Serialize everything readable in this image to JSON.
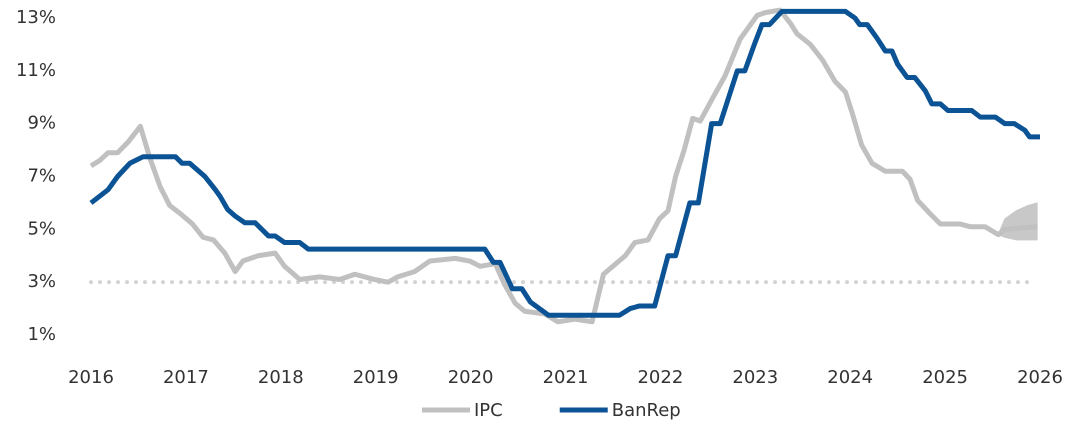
{
  "chart_data": {
    "type": "line",
    "xlim": [
      2016,
      2026
    ],
    "xticks": [
      2016,
      2017,
      2018,
      2019,
      2020,
      2021,
      2022,
      2023,
      2024,
      2025,
      2026
    ],
    "ylim": [
      1,
      13
    ],
    "yticks": [
      {
        "value": 1,
        "label": "1%"
      },
      {
        "value": 3,
        "label": "3%"
      },
      {
        "value": 5,
        "label": "5%"
      },
      {
        "value": 7,
        "label": "7%"
      },
      {
        "value": 9,
        "label": "9%"
      },
      {
        "value": 11,
        "label": "11%"
      },
      {
        "value": 13,
        "label": "13%"
      }
    ],
    "grid": false,
    "legend": "bottom",
    "reference_line": {
      "value": 3,
      "color": "#d3d3d3",
      "style": "dotted"
    },
    "series": [
      {
        "name": "IPC",
        "color": "#c0c0c0",
        "x": [
          2016.0,
          2016.09,
          2016.18,
          2016.28,
          2016.39,
          2016.52,
          2016.62,
          2016.73,
          2016.83,
          2016.94,
          2017.07,
          2017.18,
          2017.29,
          2017.41,
          2017.52,
          2017.6,
          2017.76,
          2017.94,
          2018.04,
          2018.2,
          2018.41,
          2018.62,
          2018.78,
          2018.99,
          2019.13,
          2019.23,
          2019.41,
          2019.57,
          2019.84,
          2019.99,
          2020.1,
          2020.26,
          2020.36,
          2020.47,
          2020.57,
          2020.78,
          2020.92,
          2021.1,
          2021.28,
          2021.4,
          2021.63,
          2021.73,
          2021.87,
          2021.99,
          2022.08,
          2022.16,
          2022.25,
          2022.34,
          2022.42,
          2022.54,
          2022.68,
          2022.84,
          2022.92,
          2023.02,
          2023.1,
          2023.26,
          2023.37,
          2023.44,
          2023.58,
          2023.71,
          2023.84,
          2023.95,
          2024.03,
          2024.12,
          2024.23,
          2024.37,
          2024.55,
          2024.63,
          2024.71,
          2024.84,
          2024.95,
          2025.16,
          2025.26,
          2025.42,
          2025.56,
          2025.63,
          2025.97
        ],
        "values": [
          7.4,
          7.6,
          7.9,
          7.9,
          8.3,
          8.9,
          7.7,
          6.6,
          5.9,
          5.6,
          5.2,
          4.7,
          4.6,
          4.1,
          3.4,
          3.8,
          4.0,
          4.1,
          3.6,
          3.1,
          3.2,
          3.1,
          3.3,
          3.1,
          3.0,
          3.2,
          3.4,
          3.8,
          3.9,
          3.8,
          3.6,
          3.7,
          2.9,
          2.2,
          1.9,
          1.8,
          1.5,
          1.6,
          1.5,
          3.3,
          4.0,
          4.5,
          4.6,
          5.4,
          5.7,
          7.0,
          8.0,
          9.2,
          9.1,
          9.9,
          10.8,
          12.2,
          12.6,
          13.1,
          13.2,
          13.3,
          12.8,
          12.4,
          12.0,
          11.4,
          10.6,
          10.2,
          9.3,
          8.2,
          7.5,
          7.2,
          7.2,
          6.9,
          6.1,
          5.6,
          5.2,
          5.2,
          5.1,
          5.1,
          4.8,
          5.0,
          5.1
        ],
        "band": {
          "color": "#c8c8c8",
          "x": [
            2025.56,
            2025.63,
            2025.75,
            2025.87,
            2025.97
          ],
          "lower": [
            4.8,
            4.7,
            4.6,
            4.6,
            4.6
          ],
          "upper": [
            4.8,
            5.4,
            5.7,
            5.9,
            6.0
          ]
        }
      },
      {
        "name": "BanRep",
        "color": "#0b5394",
        "x": [
          2016.0,
          2016.18,
          2016.28,
          2016.41,
          2016.55,
          2016.89,
          2016.96,
          2017.04,
          2017.2,
          2017.31,
          2017.36,
          2017.44,
          2017.52,
          2017.62,
          2017.73,
          2017.87,
          2017.94,
          2018.04,
          2018.2,
          2018.29,
          2020.15,
          2020.24,
          2020.31,
          2020.44,
          2020.54,
          2020.63,
          2020.82,
          2021.57,
          2021.68,
          2021.78,
          2021.94,
          2022.08,
          2022.16,
          2022.31,
          2022.4,
          2022.54,
          2022.63,
          2022.81,
          2022.89,
          2022.99,
          2023.07,
          2023.15,
          2023.28,
          2023.95,
          2024.05,
          2024.1,
          2024.18,
          2024.28,
          2024.37,
          2024.44,
          2024.5,
          2024.6,
          2024.68,
          2024.79,
          2024.86,
          2024.95,
          2025.03,
          2025.28,
          2025.37,
          2025.53,
          2025.63,
          2025.73,
          2025.84,
          2025.89,
          2026.0
        ],
        "values": [
          6.0,
          6.5,
          7.0,
          7.5,
          7.75,
          7.75,
          7.5,
          7.5,
          7.0,
          6.5,
          6.25,
          5.75,
          5.5,
          5.25,
          5.25,
          4.75,
          4.75,
          4.5,
          4.5,
          4.25,
          4.25,
          3.75,
          3.75,
          2.75,
          2.75,
          2.25,
          1.75,
          1.75,
          2.0,
          2.1,
          2.1,
          4.0,
          4.0,
          6.0,
          6.0,
          9.0,
          9.0,
          11.0,
          11.0,
          12.0,
          12.75,
          12.75,
          13.25,
          13.25,
          13.0,
          12.75,
          12.75,
          12.25,
          11.75,
          11.75,
          11.25,
          10.75,
          10.75,
          10.25,
          9.75,
          9.75,
          9.5,
          9.5,
          9.25,
          9.25,
          9.0,
          9.0,
          8.75,
          8.5,
          8.5
        ]
      }
    ]
  }
}
